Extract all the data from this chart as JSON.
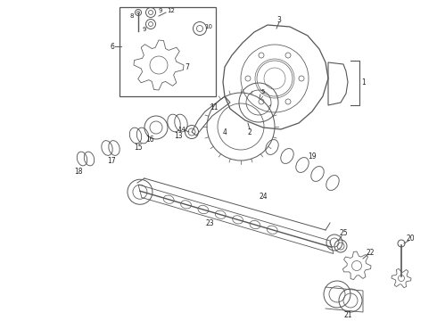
{
  "bg": "#ffffff",
  "lc": "#555555",
  "lw": 0.7,
  "fig_w": 4.9,
  "fig_h": 3.6,
  "dpi": 100
}
